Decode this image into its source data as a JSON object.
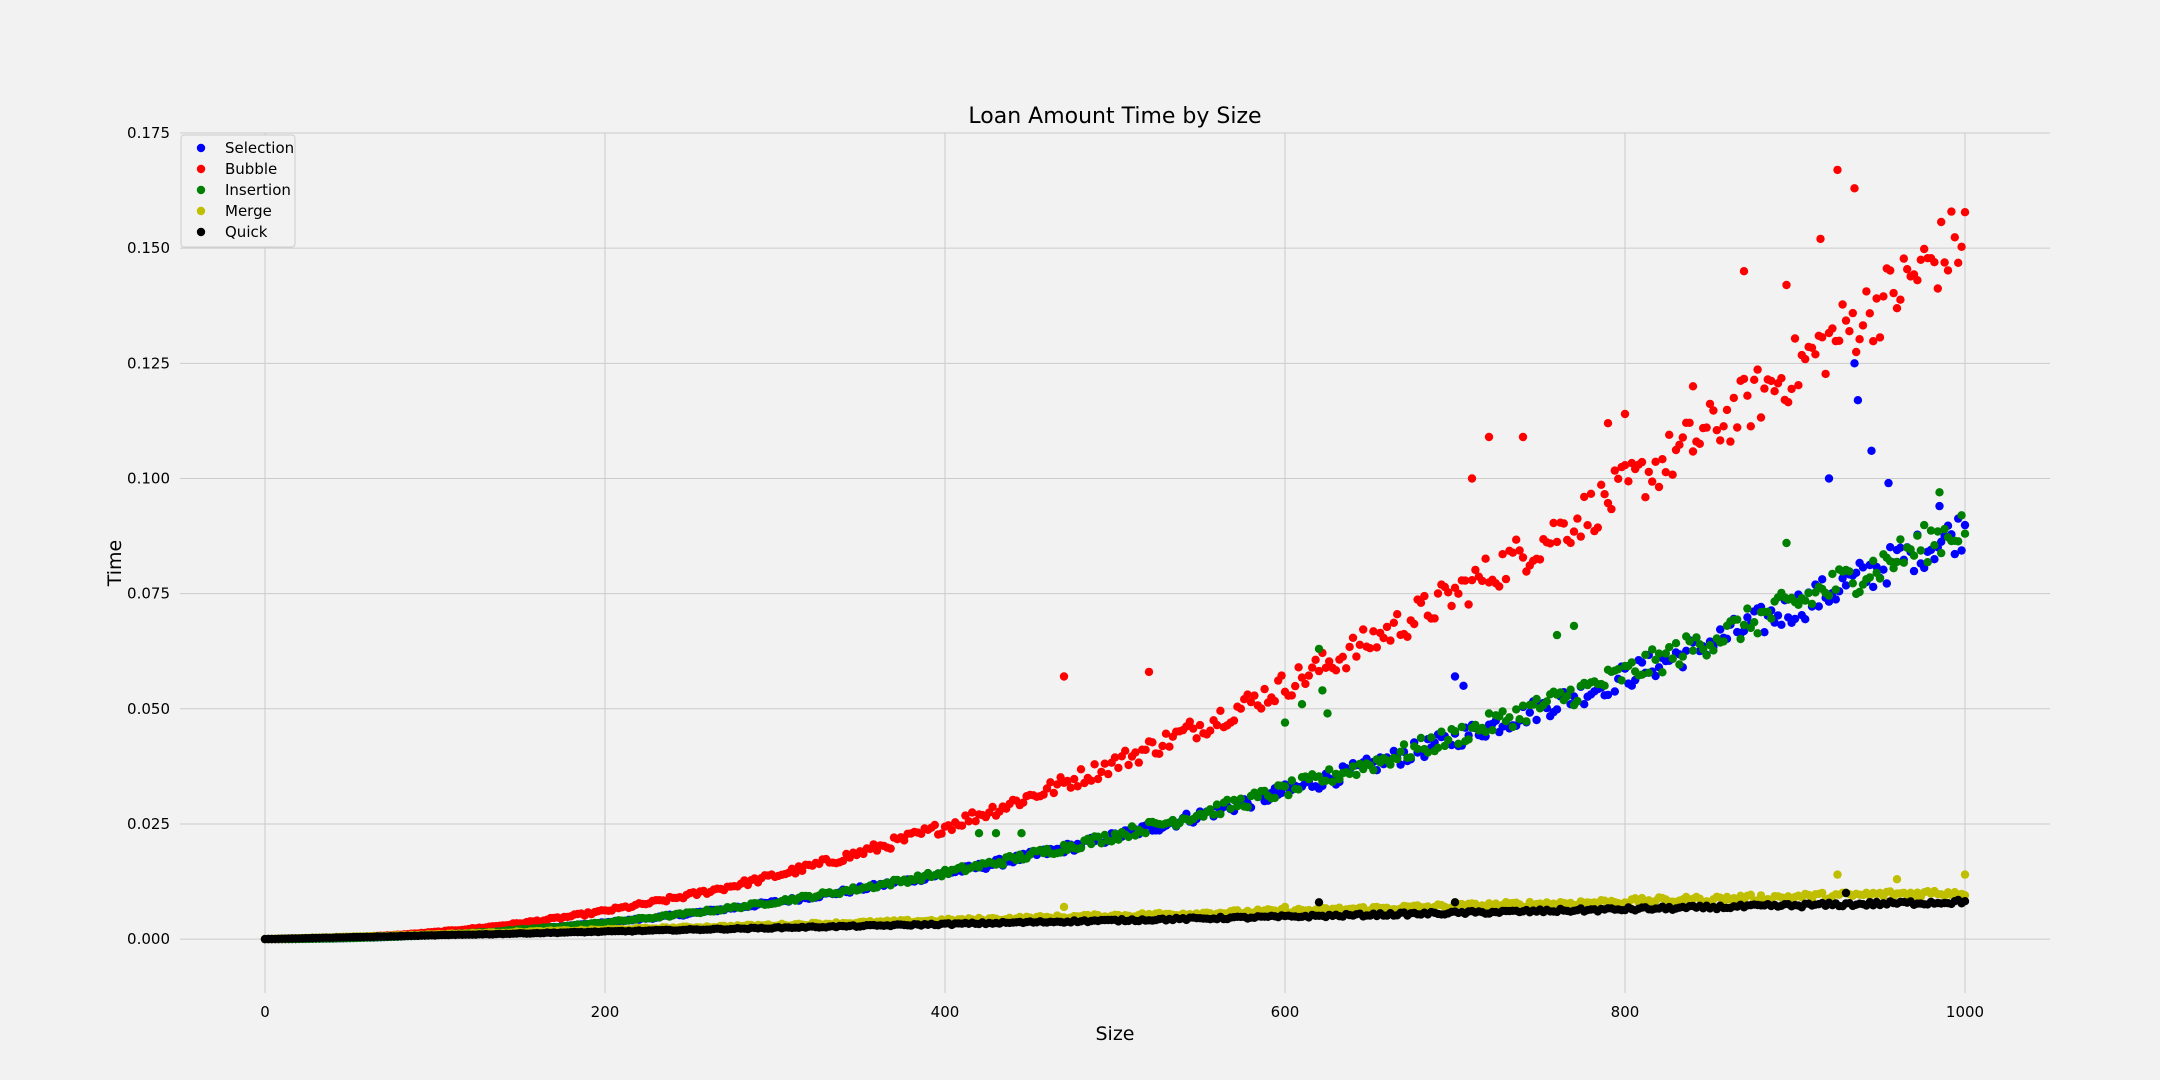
{
  "chart_data": {
    "type": "scatter",
    "title": "Loan Amount Time by Size",
    "xlabel": "Size",
    "ylabel": "Time",
    "xlim": [
      -50,
      1050
    ],
    "ylim": [
      -0.0117,
      0.175
    ],
    "xticks": [
      0,
      200,
      400,
      600,
      800,
      1000
    ],
    "xtick_labels": [
      "0",
      "200",
      "400",
      "600",
      "800",
      "1000"
    ],
    "yticks": [
      0.0,
      0.025,
      0.05,
      0.075,
      0.1,
      0.125,
      0.15,
      0.175
    ],
    "ytick_labels": [
      "0.000",
      "0.025",
      "0.050",
      "0.075",
      "0.100",
      "0.125",
      "0.150",
      "0.175"
    ],
    "grid": true,
    "legend_position": "top-left",
    "background": "#f2f2f2",
    "grid_color": "#cbcbcb",
    "x_range": {
      "start": 0,
      "end": 1000,
      "step": 2
    },
    "series": [
      {
        "name": "Selection",
        "color": "#0000ff",
        "model": {
          "a": 8.9e-08,
          "p": 2.0,
          "noise": 0.05
        },
        "outliers": [
          [
            700,
            0.057
          ],
          [
            705,
            0.055
          ],
          [
            920,
            0.1
          ],
          [
            935,
            0.125
          ],
          [
            937,
            0.117
          ],
          [
            945,
            0.106
          ],
          [
            955,
            0.099
          ],
          [
            985,
            0.094
          ]
        ]
      },
      {
        "name": "Bubble",
        "color": "#ff0000",
        "model": {
          "a": 1.53e-07,
          "p": 2.0,
          "noise": 0.055
        },
        "outliers": [
          [
            470,
            0.057
          ],
          [
            520,
            0.058
          ],
          [
            710,
            0.1
          ],
          [
            720,
            0.109
          ],
          [
            740,
            0.109
          ],
          [
            790,
            0.112
          ],
          [
            800,
            0.114
          ],
          [
            840,
            0.12
          ],
          [
            870,
            0.145
          ],
          [
            895,
            0.142
          ],
          [
            925,
            0.167
          ],
          [
            935,
            0.163
          ],
          [
            915,
            0.152
          ]
        ]
      },
      {
        "name": "Insertion",
        "color": "#008000",
        "model": {
          "a": 9e-08,
          "p": 2.0,
          "noise": 0.05
        },
        "outliers": [
          [
            420,
            0.023
          ],
          [
            430,
            0.023
          ],
          [
            445,
            0.023
          ],
          [
            600,
            0.047
          ],
          [
            620,
            0.063
          ],
          [
            622,
            0.054
          ],
          [
            625,
            0.049
          ],
          [
            610,
            0.051
          ],
          [
            770,
            0.068
          ],
          [
            760,
            0.066
          ],
          [
            895,
            0.086
          ],
          [
            985,
            0.097
          ]
        ]
      },
      {
        "name": "Merge",
        "color": "#bfbf00",
        "model": {
          "a": 1.02e-05,
          "p": 1.0,
          "noise": 0.08
        },
        "outliers": [
          [
            470,
            0.007
          ],
          [
            600,
            0.007
          ],
          [
            700,
            0.008
          ],
          [
            925,
            0.014
          ],
          [
            960,
            0.013
          ],
          [
            1000,
            0.014
          ]
        ]
      },
      {
        "name": "Quick",
        "color": "#000000",
        "model": {
          "a": 8.1e-06,
          "p": 1.0,
          "noise": 0.06
        },
        "outliers": [
          [
            620,
            0.008
          ],
          [
            700,
            0.008
          ],
          [
            930,
            0.01
          ]
        ]
      }
    ]
  }
}
